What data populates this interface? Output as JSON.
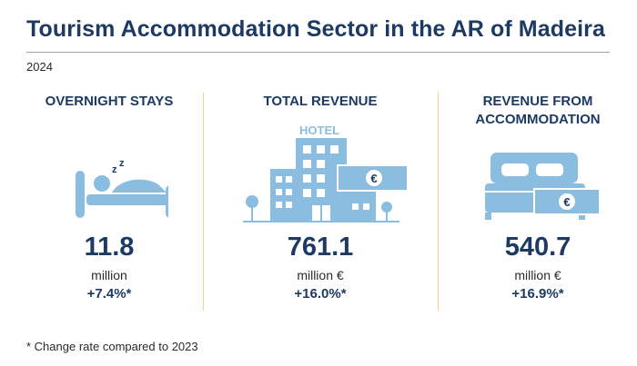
{
  "header": {
    "title": "Tourism Accommodation Sector in the AR of Madeira",
    "year": "2024"
  },
  "colors": {
    "text": "#1c3a63",
    "icon": "#8bbde0",
    "divider": "#f3d489"
  },
  "indicators": [
    {
      "label": "OVERNIGHT STAYS",
      "icon": "sleeping-person-icon",
      "value": "11.8",
      "unit": "million",
      "change": "+7.4%*"
    },
    {
      "label": "TOTAL REVENUE",
      "icon": "hotel-icon",
      "icon_text": "HOTEL",
      "icon_symbol": "€",
      "value": "761.1",
      "unit": "million €",
      "change": "+16.0%*"
    },
    {
      "label": "REVENUE FROM ACCOMMODATION",
      "icon": "bed-money-icon",
      "icon_symbol": "€",
      "value": "540.7",
      "unit": "million €",
      "change": "+16.9%*"
    }
  ],
  "footnote": "* Change rate compared to 2023"
}
